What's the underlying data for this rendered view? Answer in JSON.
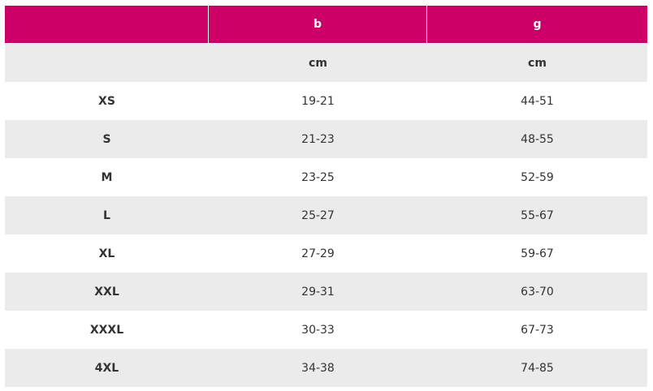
{
  "table": {
    "header": [
      "b",
      "g"
    ],
    "units": [
      "cm",
      "cm"
    ],
    "rows": [
      [
        "XS",
        "19-21",
        "44-51"
      ],
      [
        "S",
        "21-23",
        "48-55"
      ],
      [
        "M",
        "23-25",
        "52-59"
      ],
      [
        "L",
        "25-27",
        "55-67"
      ],
      [
        "XL",
        "27-29",
        "59-67"
      ],
      [
        "XXL",
        "29-31",
        "63-70"
      ],
      [
        "XXXL",
        "30-33",
        "67-73"
      ],
      [
        "4XL",
        "34-38",
        "74-85"
      ]
    ]
  }
}
